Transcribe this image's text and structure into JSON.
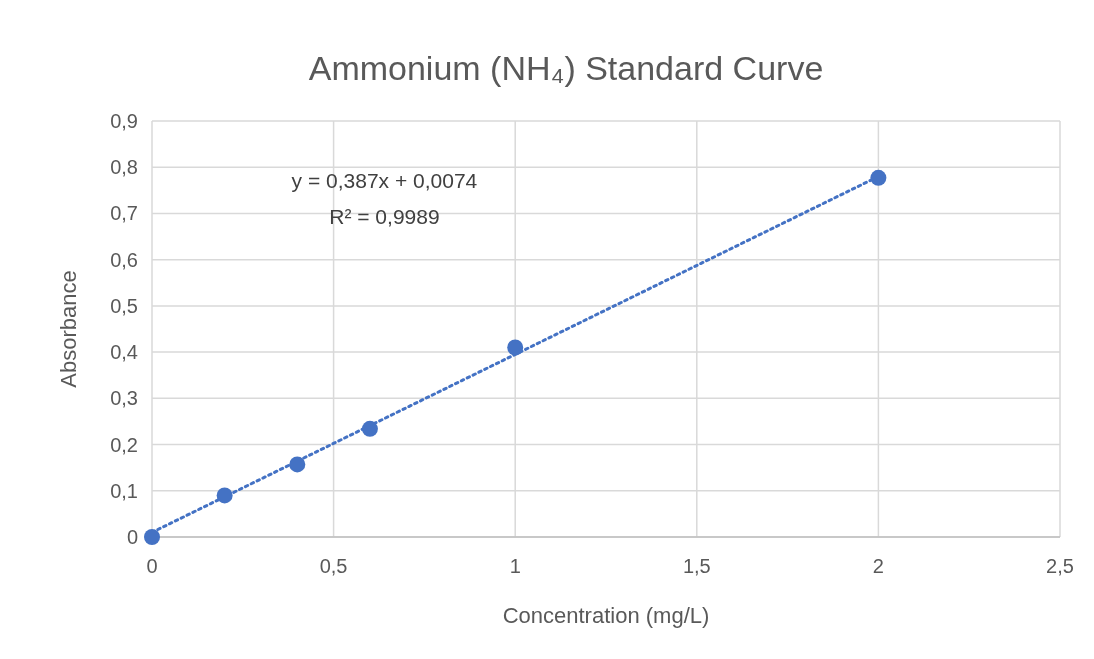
{
  "chart_data": {
    "type": "scatter",
    "title": "Ammonium (NH₄) Standard Curve",
    "xlabel": "Concentration (mg/L)",
    "ylabel": "Absorbance",
    "x": [
      0,
      0.2,
      0.4,
      0.6,
      1,
      2
    ],
    "series": [
      {
        "color": "#4472c4",
        "marker": "circle",
        "values": [
          0,
          0.09,
          0.157,
          0.234,
          0.41,
          0.777
        ]
      },
      {
        "type": "line",
        "color": "#4472c4",
        "marker": "none",
        "line_style": "dotted",
        "x": [
          0,
          2
        ],
        "values": [
          0.01,
          0.78
        ]
      }
    ],
    "annotations": [
      "y = 0,387x + 0,0074",
      "R² = 0,9989"
    ],
    "xlim": [
      0,
      2.5
    ],
    "ylim": [
      0,
      0.9
    ],
    "xticks": [
      0,
      {
        "value": 0.5,
        "label": "0,5"
      },
      1,
      {
        "value": 1.5,
        "label": "1,5"
      },
      2,
      {
        "value": 2.5,
        "label": "2,5"
      }
    ],
    "yticks": [
      0,
      {
        "value": 0.1,
        "label": "0,1"
      },
      {
        "value": 0.2,
        "label": "0,2"
      },
      {
        "value": 0.3,
        "label": "0,3"
      },
      {
        "value": 0.4,
        "label": "0,4"
      },
      {
        "value": 0.5,
        "label": "0,5"
      },
      {
        "value": 0.6,
        "label": "0,6"
      },
      {
        "value": 0.7,
        "label": "0,7"
      },
      {
        "value": 0.8,
        "label": "0,8"
      },
      {
        "value": 0.9,
        "label": "0,9"
      }
    ],
    "grid": true
  }
}
